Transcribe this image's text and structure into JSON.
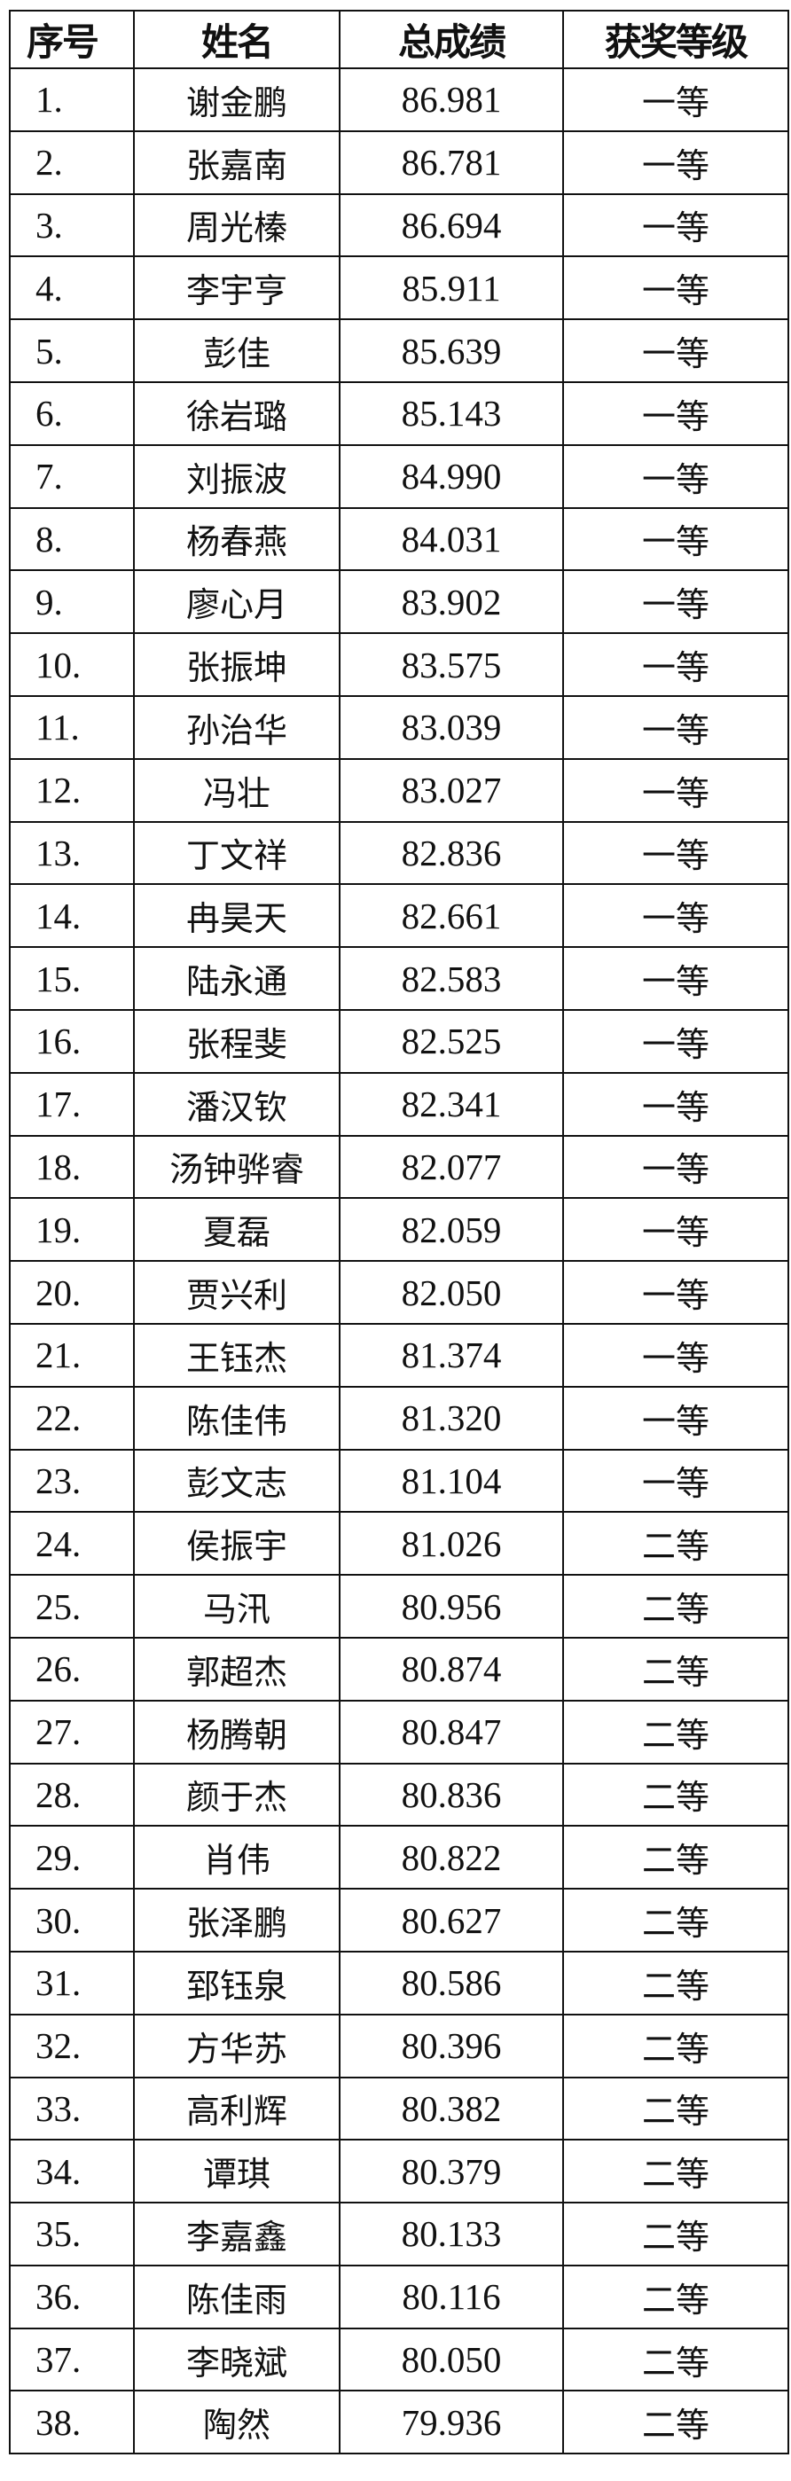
{
  "table": {
    "headers": [
      "序号",
      "姓名",
      "总成绩",
      "获奖等级"
    ],
    "rows": [
      [
        "1.",
        "谢金鹏",
        "86.981",
        "一等"
      ],
      [
        "2.",
        "张嘉南",
        "86.781",
        "一等"
      ],
      [
        "3.",
        "周光榛",
        "86.694",
        "一等"
      ],
      [
        "4.",
        "李宇亨",
        "85.911",
        "一等"
      ],
      [
        "5.",
        "彭佳",
        "85.639",
        "一等"
      ],
      [
        "6.",
        "徐岩璐",
        "85.143",
        "一等"
      ],
      [
        "7.",
        "刘振波",
        "84.990",
        "一等"
      ],
      [
        "8.",
        "杨春燕",
        "84.031",
        "一等"
      ],
      [
        "9.",
        "廖心月",
        "83.902",
        "一等"
      ],
      [
        "10.",
        "张振坤",
        "83.575",
        "一等"
      ],
      [
        "11.",
        "孙治华",
        "83.039",
        "一等"
      ],
      [
        "12.",
        "冯壮",
        "83.027",
        "一等"
      ],
      [
        "13.",
        "丁文祥",
        "82.836",
        "一等"
      ],
      [
        "14.",
        "冉昊天",
        "82.661",
        "一等"
      ],
      [
        "15.",
        "陆永通",
        "82.583",
        "一等"
      ],
      [
        "16.",
        "张程斐",
        "82.525",
        "一等"
      ],
      [
        "17.",
        "潘汉钦",
        "82.341",
        "一等"
      ],
      [
        "18.",
        "汤钟骅睿",
        "82.077",
        "一等"
      ],
      [
        "19.",
        "夏磊",
        "82.059",
        "一等"
      ],
      [
        "20.",
        "贾兴利",
        "82.050",
        "一等"
      ],
      [
        "21.",
        "王钰杰",
        "81.374",
        "一等"
      ],
      [
        "22.",
        "陈佳伟",
        "81.320",
        "一等"
      ],
      [
        "23.",
        "彭文志",
        "81.104",
        "一等"
      ],
      [
        "24.",
        "侯振宇",
        "81.026",
        "二等"
      ],
      [
        "25.",
        "马汛",
        "80.956",
        "二等"
      ],
      [
        "26.",
        "郭超杰",
        "80.874",
        "二等"
      ],
      [
        "27.",
        "杨腾朝",
        "80.847",
        "二等"
      ],
      [
        "28.",
        "颜于杰",
        "80.836",
        "二等"
      ],
      [
        "29.",
        "肖伟",
        "80.822",
        "二等"
      ],
      [
        "30.",
        "张泽鹏",
        "80.627",
        "二等"
      ],
      [
        "31.",
        "郅钰泉",
        "80.586",
        "二等"
      ],
      [
        "32.",
        "方华苏",
        "80.396",
        "二等"
      ],
      [
        "33.",
        "高利辉",
        "80.382",
        "二等"
      ],
      [
        "34.",
        "谭琪",
        "80.379",
        "二等"
      ],
      [
        "35.",
        "李嘉鑫",
        "80.133",
        "二等"
      ],
      [
        "36.",
        "陈佳雨",
        "80.116",
        "二等"
      ],
      [
        "37.",
        "李晓斌",
        "80.050",
        "二等"
      ],
      [
        "38.",
        "陶然",
        "79.936",
        "二等"
      ]
    ]
  }
}
